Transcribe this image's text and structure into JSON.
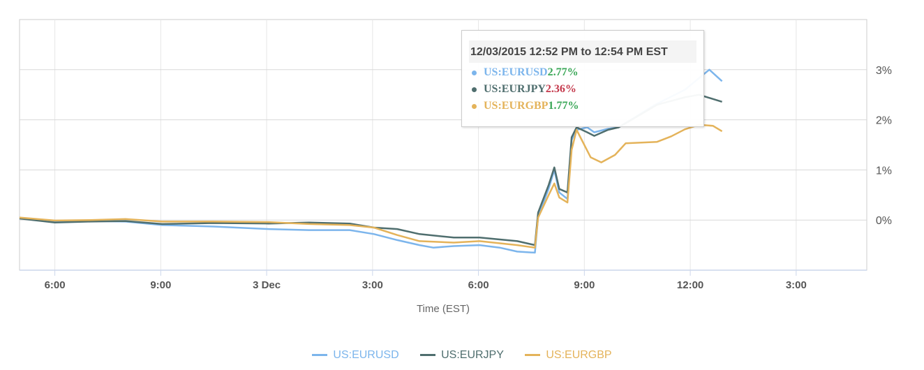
{
  "chart_data": {
    "type": "line",
    "title": "",
    "xlabel": "Time (EST)",
    "ylabel": "",
    "xlim_hours_from_dec2_midnight": [
      17,
      41
    ],
    "ylim": [
      -1,
      4
    ],
    "grid": true,
    "legend_placement": "bottom",
    "x_ticks": [
      {
        "value": 18,
        "label": "6:00"
      },
      {
        "value": 21,
        "label": "9:00"
      },
      {
        "value": 24,
        "label": "3 Dec"
      },
      {
        "value": 27,
        "label": "3:00"
      },
      {
        "value": 30,
        "label": "6:00"
      },
      {
        "value": 33,
        "label": "9:00"
      },
      {
        "value": 36,
        "label": "12:00"
      },
      {
        "value": 39,
        "label": "3:00"
      }
    ],
    "y_ticks": [
      {
        "value": 0,
        "label": "0%"
      },
      {
        "value": 1,
        "label": "1%"
      },
      {
        "value": 2,
        "label": "2%"
      },
      {
        "value": 3,
        "label": "3%"
      }
    ],
    "series": [
      {
        "name": "US:EURUSD",
        "color": "#7cb5ec",
        "points": [
          [
            17,
            0.04
          ],
          [
            18,
            -0.03
          ],
          [
            19,
            -0.02
          ],
          [
            20,
            -0.03
          ],
          [
            21.04,
            -0.1
          ],
          [
            22.5,
            -0.13
          ],
          [
            24.05,
            -0.18
          ],
          [
            25.2,
            -0.2
          ],
          [
            26.35,
            -0.2
          ],
          [
            27.04,
            -0.28
          ],
          [
            27.7,
            -0.4
          ],
          [
            28.33,
            -0.5
          ],
          [
            28.72,
            -0.55
          ],
          [
            29.3,
            -0.52
          ],
          [
            30.03,
            -0.5
          ],
          [
            30.6,
            -0.55
          ],
          [
            31.1,
            -0.63
          ],
          [
            31.6,
            -0.65
          ],
          [
            31.69,
            0.07
          ],
          [
            31.99,
            0.63
          ],
          [
            32.15,
            1.0
          ],
          [
            32.29,
            0.55
          ],
          [
            32.52,
            0.42
          ],
          [
            32.64,
            1.6
          ],
          [
            32.78,
            1.8
          ],
          [
            33.08,
            1.85
          ],
          [
            33.28,
            1.75
          ],
          [
            33.67,
            1.82
          ],
          [
            33.97,
            1.85
          ],
          [
            35.0,
            2.3
          ],
          [
            35.85,
            2.6
          ],
          [
            36.54,
            3.0
          ],
          [
            36.9,
            2.77
          ]
        ]
      },
      {
        "name": "US:EURJPY",
        "color": "#4f6e6e",
        "points": [
          [
            17,
            0.03
          ],
          [
            18,
            -0.05
          ],
          [
            19,
            -0.03
          ],
          [
            20,
            -0.02
          ],
          [
            21.04,
            -0.08
          ],
          [
            22.5,
            -0.06
          ],
          [
            24.05,
            -0.07
          ],
          [
            25.2,
            -0.05
          ],
          [
            26.35,
            -0.07
          ],
          [
            27.04,
            -0.15
          ],
          [
            27.7,
            -0.18
          ],
          [
            28.33,
            -0.28
          ],
          [
            29.3,
            -0.35
          ],
          [
            30.03,
            -0.35
          ],
          [
            31.1,
            -0.42
          ],
          [
            31.6,
            -0.5
          ],
          [
            31.69,
            0.15
          ],
          [
            31.99,
            0.7
          ],
          [
            32.15,
            1.05
          ],
          [
            32.29,
            0.62
          ],
          [
            32.52,
            0.55
          ],
          [
            32.64,
            1.65
          ],
          [
            32.78,
            1.85
          ],
          [
            33.08,
            1.75
          ],
          [
            33.28,
            1.68
          ],
          [
            33.67,
            1.8
          ],
          [
            33.97,
            1.85
          ],
          [
            35.06,
            2.3
          ],
          [
            35.85,
            2.45
          ],
          [
            36.25,
            2.5
          ],
          [
            36.9,
            2.36
          ]
        ]
      },
      {
        "name": "US:EURGBP",
        "color": "#e4b35a",
        "points": [
          [
            17,
            0.05
          ],
          [
            18,
            -0.01
          ],
          [
            19,
            0.0
          ],
          [
            20,
            0.02
          ],
          [
            21.04,
            -0.03
          ],
          [
            22.5,
            -0.03
          ],
          [
            24.05,
            -0.04
          ],
          [
            25.2,
            -0.08
          ],
          [
            26.35,
            -0.1
          ],
          [
            27.04,
            -0.15
          ],
          [
            27.7,
            -0.3
          ],
          [
            28.33,
            -0.42
          ],
          [
            29.3,
            -0.45
          ],
          [
            30.03,
            -0.42
          ],
          [
            31.1,
            -0.5
          ],
          [
            31.6,
            -0.55
          ],
          [
            31.69,
            0.05
          ],
          [
            31.99,
            0.5
          ],
          [
            32.15,
            0.73
          ],
          [
            32.29,
            0.45
          ],
          [
            32.52,
            0.35
          ],
          [
            32.64,
            1.4
          ],
          [
            32.78,
            1.8
          ],
          [
            33.18,
            1.25
          ],
          [
            33.48,
            1.15
          ],
          [
            33.87,
            1.3
          ],
          [
            34.17,
            1.53
          ],
          [
            35.06,
            1.56
          ],
          [
            35.46,
            1.67
          ],
          [
            35.85,
            1.81
          ],
          [
            36.25,
            1.9
          ],
          [
            36.64,
            1.88
          ],
          [
            36.9,
            1.77
          ]
        ]
      }
    ],
    "tooltip": {
      "header": "12/03/2015 12:52 PM to 12:54 PM EST",
      "rows": [
        {
          "name": "US:EURUSD",
          "value": "2.77%",
          "value_color": "#3aa757"
        },
        {
          "name": "US:EURJPY",
          "value": "2.36%",
          "value_color": "#c4384b"
        },
        {
          "name": "US:EURGBP",
          "value": "1.77%",
          "value_color": "#3aa757"
        }
      ]
    }
  }
}
